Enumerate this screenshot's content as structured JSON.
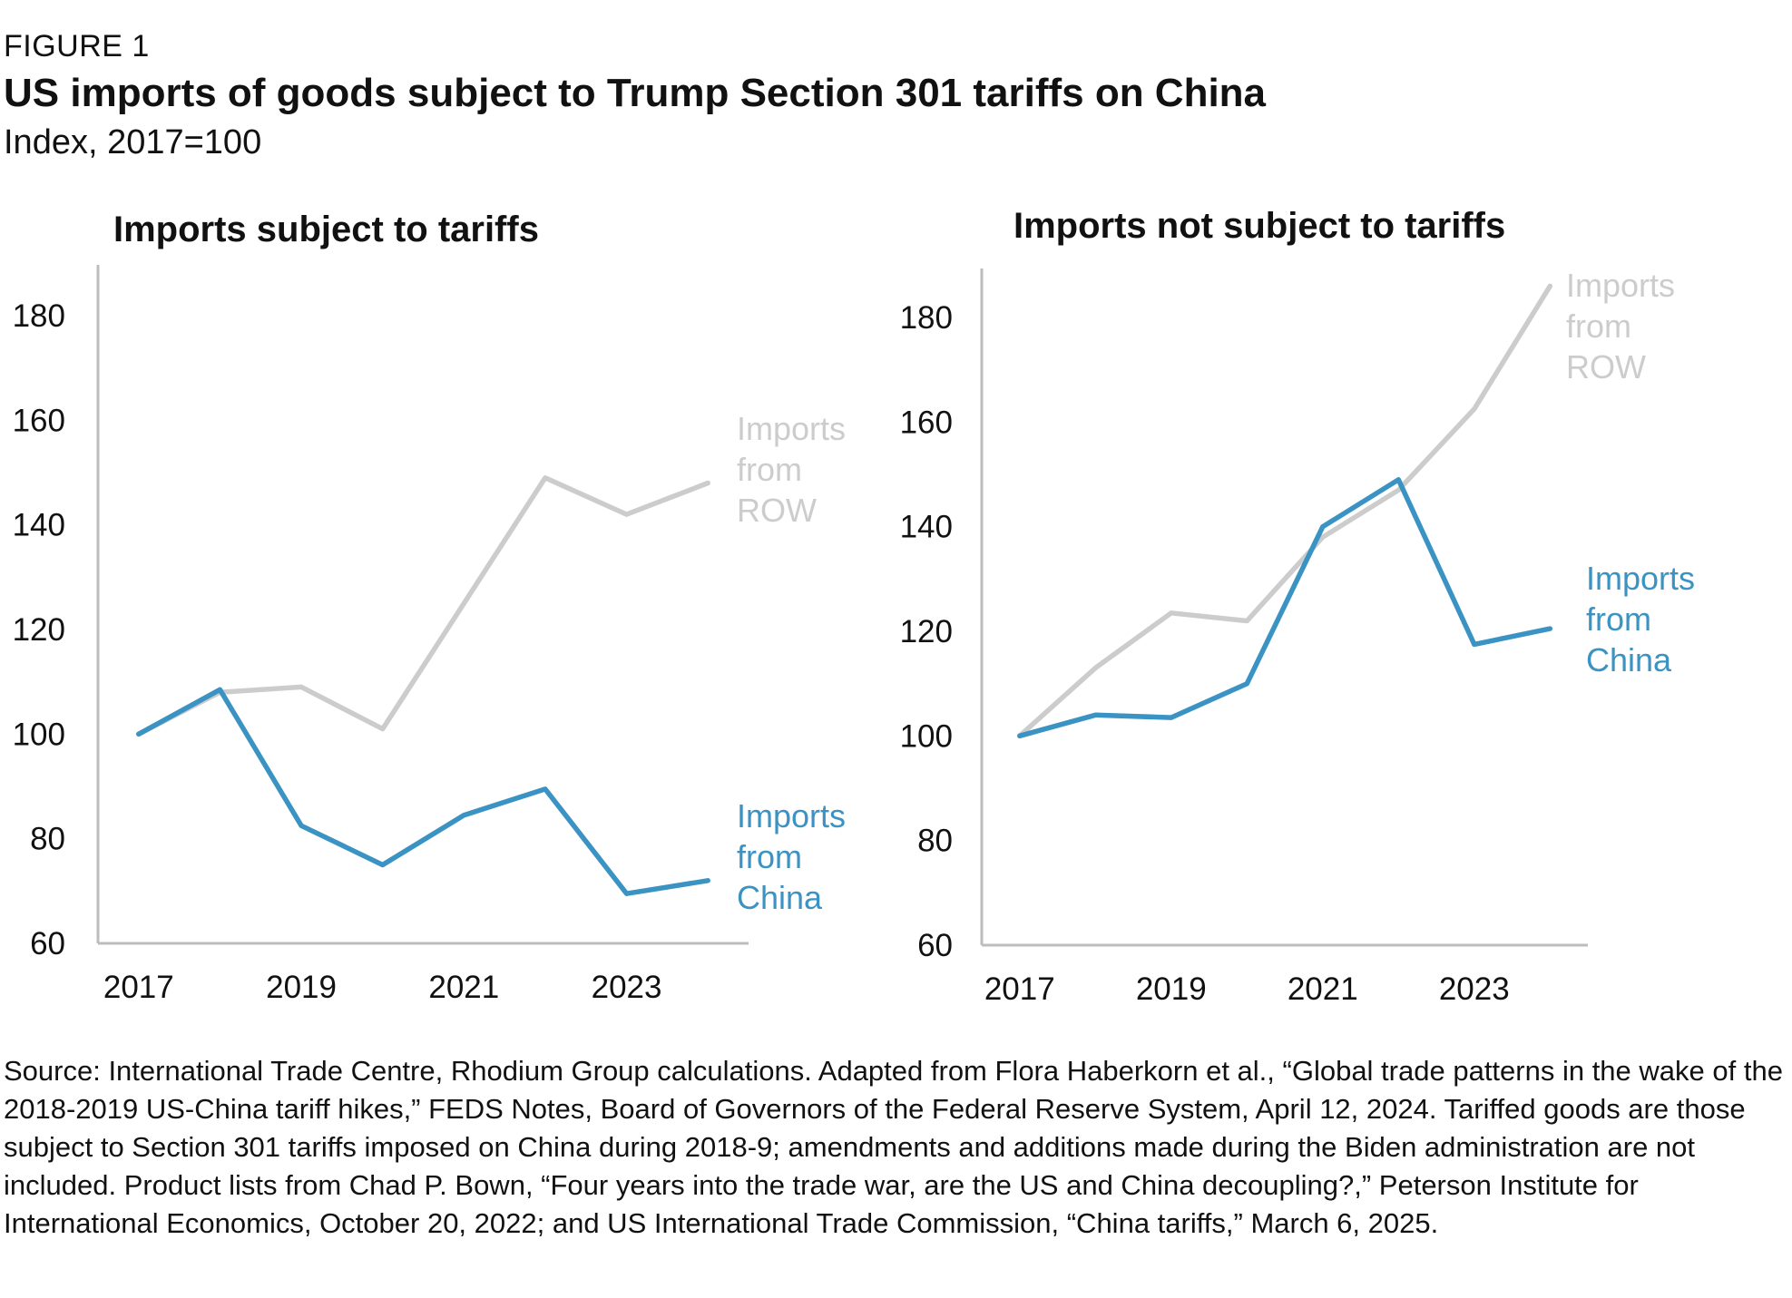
{
  "header": {
    "figure_label": "FIGURE 1",
    "title": "US imports of goods subject to Trump Section 301 tariffs on China",
    "subtitle": "Index, 2017=100"
  },
  "colors": {
    "china": "#3a93c3",
    "row": "#cccccc",
    "axis": "#bdbdbd",
    "text": "#111111"
  },
  "chart_data": [
    {
      "type": "line",
      "title": "Imports subject to tariffs",
      "x": [
        2017,
        2018,
        2019,
        2020,
        2021,
        2022,
        2023,
        2024
      ],
      "xticks": [
        2017,
        2019,
        2021,
        2023
      ],
      "yticks": [
        60,
        80,
        100,
        120,
        140,
        160,
        180
      ],
      "ylim": [
        60,
        190
      ],
      "xlim": [
        2016.5,
        2024.5
      ],
      "grid": false,
      "series": [
        {
          "key": "row",
          "name_lines": [
            "Imports",
            "from",
            "ROW"
          ],
          "color": "#cccccc",
          "values": [
            100,
            108,
            109,
            101,
            125,
            149,
            142,
            148
          ]
        },
        {
          "key": "china",
          "name_lines": [
            "Imports",
            "from",
            "China"
          ],
          "color": "#3a93c3",
          "values": [
            100,
            108.5,
            82.5,
            75,
            84.5,
            89.5,
            69.5,
            72
          ]
        }
      ]
    },
    {
      "type": "line",
      "title": "Imports not subject to tariffs",
      "x": [
        2017,
        2018,
        2019,
        2020,
        2021,
        2022,
        2023,
        2024
      ],
      "xticks": [
        2017,
        2019,
        2021,
        2023
      ],
      "yticks": [
        60,
        80,
        100,
        120,
        140,
        160,
        180
      ],
      "ylim": [
        60,
        190
      ],
      "xlim": [
        2016.5,
        2024.5
      ],
      "grid": false,
      "series": [
        {
          "key": "row",
          "name_lines": [
            "Imports",
            "from",
            "ROW"
          ],
          "color": "#cccccc",
          "values": [
            100,
            113,
            123.5,
            122,
            138,
            147,
            162.5,
            186
          ]
        },
        {
          "key": "china",
          "name_lines": [
            "Imports",
            "from",
            "China"
          ],
          "color": "#3a93c3",
          "values": [
            100,
            104,
            103.5,
            110,
            140,
            149,
            117.5,
            120.5
          ]
        }
      ]
    }
  ],
  "source": "Source: International Trade Centre, Rhodium Group calculations. Adapted from Flora Haberkorn et al., “Global trade patterns in the wake of the 2018-2019 US-China tariff hikes,” FEDS Notes, Board of Governors of the Federal Reserve System, April 12, 2024. Tariffed goods are those subject to Section 301 tariffs imposed on China during 2018-9; amendments and additions made during the Biden administration are not included. Product lists from Chad P. Bown, “Four years into the trade war, are the US and China decoupling?,” Peterson Institute for International Economics, October 20, 2022; and US International Trade Commission, “China tariffs,” March 6, 2025."
}
